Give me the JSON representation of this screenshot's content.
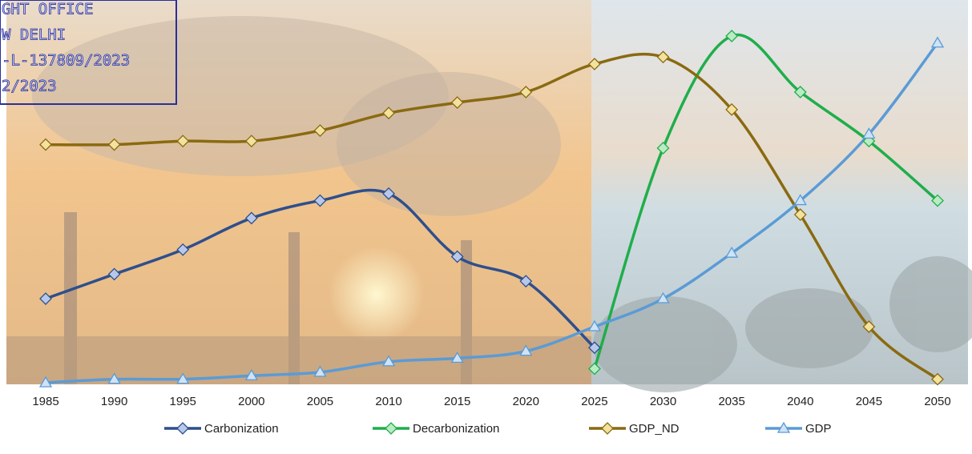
{
  "stamp": [
    "GHT OFFICE",
    "W DELHI",
    "-L-137809/2023",
    "2/2023"
  ],
  "chart_data": {
    "type": "line",
    "categories": [
      "1985",
      "1990",
      "1995",
      "2000",
      "2005",
      "2010",
      "2015",
      "2020",
      "2025",
      "2030",
      "2035",
      "2040",
      "2045",
      "2050"
    ],
    "series": [
      {
        "name": "Carbonization",
        "color": "#2e4f8c",
        "values": [
          24,
          31,
          38,
          47,
          52,
          54,
          36,
          29,
          10,
          null,
          null,
          null,
          null,
          null
        ]
      },
      {
        "name": "Decarbonization",
        "color": "#1fae4b",
        "values": [
          null,
          null,
          null,
          null,
          null,
          null,
          null,
          null,
          4,
          67,
          99,
          83,
          69,
          52
        ]
      },
      {
        "name": "GDP_ND",
        "color": "#8a6a10",
        "values": [
          68,
          68,
          69,
          69,
          72,
          77,
          80,
          83,
          91,
          93,
          78,
          48,
          16,
          1
        ]
      },
      {
        "name": "GDP",
        "color": "#5b9bd5",
        "values": [
          0,
          1,
          1,
          2,
          3,
          6,
          7,
          9,
          16,
          24,
          37,
          52,
          71,
          97
        ]
      }
    ]
  }
}
